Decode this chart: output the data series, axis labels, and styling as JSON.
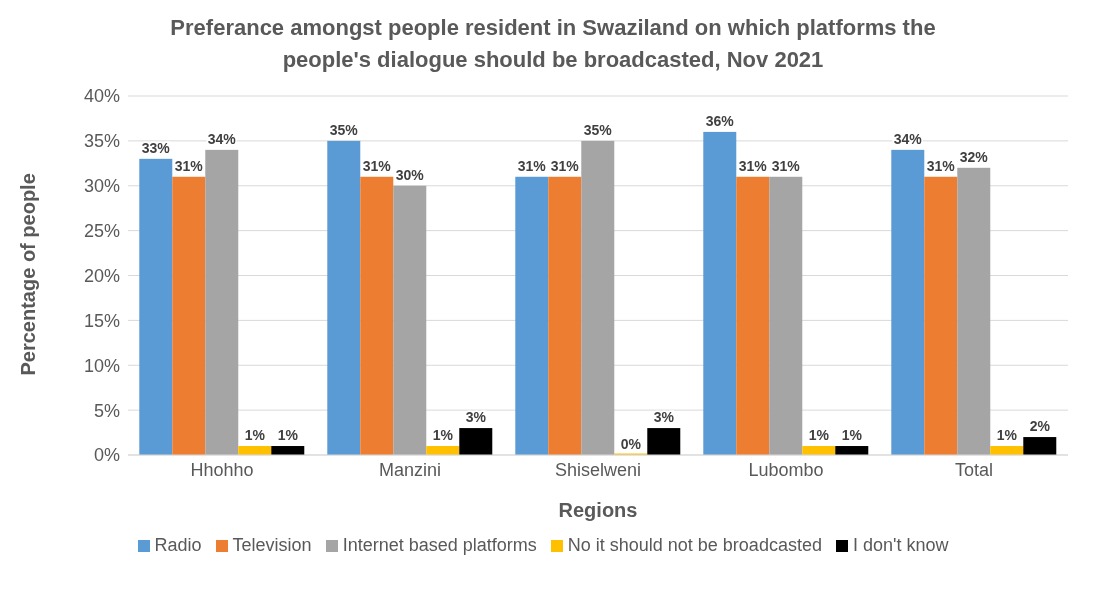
{
  "chart_data": {
    "type": "bar",
    "title": "Preferance amongst people resident in Swaziland on which platforms the people's dialogue should be broadcasted, Nov 2021",
    "xlabel": "Regions",
    "ylabel": "Percentage of people",
    "categories": [
      "Hhohho",
      "Manzini",
      "Shiselweni",
      "Lubombo",
      "Total"
    ],
    "series": [
      {
        "name": "Radio",
        "color": "#5b9bd5",
        "values": [
          33,
          35,
          31,
          36,
          34
        ],
        "value_labels": [
          "33%",
          "35%",
          "31%",
          "36%",
          "34%"
        ]
      },
      {
        "name": "Television",
        "color": "#ed7d31",
        "values": [
          31,
          31,
          31,
          31,
          31
        ],
        "value_labels": [
          "31%",
          "31%",
          "31%",
          "31%",
          "31%"
        ]
      },
      {
        "name": "Internet based platforms",
        "color": "#a5a5a5",
        "values": [
          34,
          30,
          35,
          31,
          32
        ],
        "value_labels": [
          "34%",
          "30%",
          "35%",
          "31%",
          "32%"
        ]
      },
      {
        "name": "No it should not be broadcasted",
        "color": "#ffc000",
        "values": [
          1,
          1,
          0,
          1,
          1
        ],
        "value_labels": [
          "1%",
          "1%",
          "0%",
          "1%",
          "1%"
        ]
      },
      {
        "name": "I don't know",
        "color": "#000000",
        "values": [
          1,
          3,
          3,
          1,
          2
        ],
        "value_labels": [
          "1%",
          "3%",
          "3%",
          "1%",
          "2%"
        ]
      }
    ],
    "ylim": [
      0,
      40
    ],
    "yticks": [
      {
        "value": 0,
        "label": "0%"
      },
      {
        "value": 5,
        "label": "5%"
      },
      {
        "value": 10,
        "label": "10%"
      },
      {
        "value": 15,
        "label": "15%"
      },
      {
        "value": 20,
        "label": "20%"
      },
      {
        "value": 25,
        "label": "25%"
      },
      {
        "value": 30,
        "label": "30%"
      },
      {
        "value": 35,
        "label": "35%"
      },
      {
        "value": 40,
        "label": "40%"
      }
    ],
    "grid": "y",
    "legend": "bottom"
  }
}
